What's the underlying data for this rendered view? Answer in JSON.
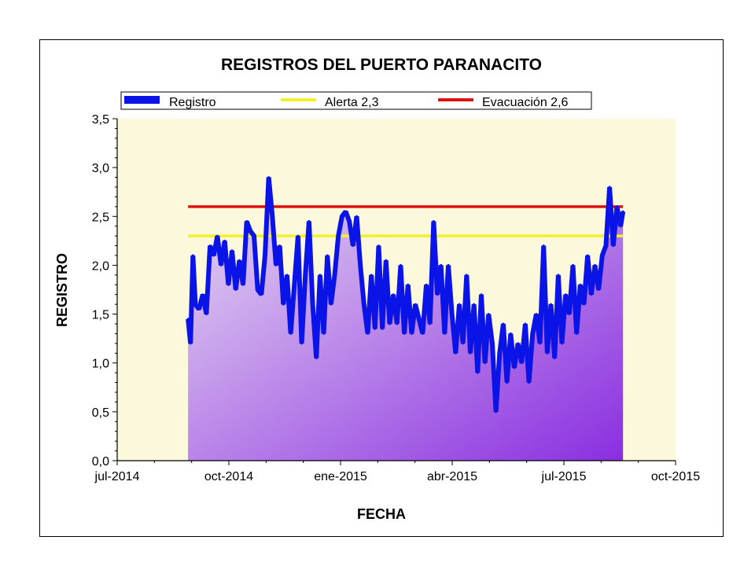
{
  "chart_data": {
    "type": "area",
    "title": "REGISTROS DEL PUERTO PARANACITO",
    "xlabel": "FECHA",
    "ylabel": "REGISTRO",
    "x_range": [
      "2014-07-01",
      "2015-10-01"
    ],
    "ylim": [
      0,
      3.5
    ],
    "x_ticks": [
      "jul-2014",
      "oct-2014",
      "ene-2015",
      "abr-2015",
      "jul-2015",
      "oct-2015"
    ],
    "y_ticks": [
      "0,0",
      "0,5",
      "1,0",
      "1,5",
      "2,0",
      "2,5",
      "3,0",
      "3,5"
    ],
    "legend_position": "top",
    "colors": {
      "plot_background": "#fbf8dc",
      "registro": "#0a14e6",
      "fill_top": "#e8dcf2",
      "fill_bottom": "#8a2ee0",
      "alerta": "#f2f22a",
      "evacuacion": "#e01010"
    },
    "series": [
      {
        "name": "Registro",
        "kind": "line-with-area-fill",
        "points": [
          [
            "2014-08-28",
            1.45
          ],
          [
            "2014-08-30",
            1.2
          ],
          [
            "2014-09-01",
            2.1
          ],
          [
            "2014-09-03",
            1.6
          ],
          [
            "2014-09-06",
            1.55
          ],
          [
            "2014-09-09",
            1.7
          ],
          [
            "2014-09-12",
            1.5
          ],
          [
            "2014-09-15",
            2.2
          ],
          [
            "2014-09-18",
            2.1
          ],
          [
            "2014-09-21",
            2.3
          ],
          [
            "2014-09-24",
            2.0
          ],
          [
            "2014-09-27",
            2.25
          ],
          [
            "2014-09-30",
            1.8
          ],
          [
            "2014-10-03",
            2.15
          ],
          [
            "2014-10-06",
            1.75
          ],
          [
            "2014-10-09",
            2.05
          ],
          [
            "2014-10-12",
            1.8
          ],
          [
            "2014-10-15",
            2.45
          ],
          [
            "2014-10-18",
            2.35
          ],
          [
            "2014-10-21",
            2.3
          ],
          [
            "2014-10-24",
            1.75
          ],
          [
            "2014-10-27",
            1.7
          ],
          [
            "2014-10-30",
            2.1
          ],
          [
            "2014-11-02",
            2.9
          ],
          [
            "2014-11-05",
            2.5
          ],
          [
            "2014-11-08",
            2.0
          ],
          [
            "2014-11-11",
            2.2
          ],
          [
            "2014-11-14",
            1.6
          ],
          [
            "2014-11-17",
            1.9
          ],
          [
            "2014-11-20",
            1.3
          ],
          [
            "2014-11-23",
            1.8
          ],
          [
            "2014-11-26",
            2.3
          ],
          [
            "2014-11-29",
            1.2
          ],
          [
            "2014-12-02",
            1.9
          ],
          [
            "2014-12-05",
            2.45
          ],
          [
            "2014-12-08",
            1.6
          ],
          [
            "2014-12-11",
            1.05
          ],
          [
            "2014-12-14",
            1.9
          ],
          [
            "2014-12-17",
            1.3
          ],
          [
            "2014-12-20",
            2.1
          ],
          [
            "2014-12-23",
            1.6
          ],
          [
            "2014-12-26",
            1.9
          ],
          [
            "2014-12-29",
            2.3
          ],
          [
            "2015-01-01",
            2.5
          ],
          [
            "2015-01-04",
            2.55
          ],
          [
            "2015-01-07",
            2.45
          ],
          [
            "2015-01-10",
            2.2
          ],
          [
            "2015-01-13",
            2.5
          ],
          [
            "2015-01-16",
            2.0
          ],
          [
            "2015-01-19",
            1.6
          ],
          [
            "2015-01-22",
            1.3
          ],
          [
            "2015-01-25",
            1.9
          ],
          [
            "2015-01-28",
            1.35
          ],
          [
            "2015-01-31",
            2.2
          ],
          [
            "2015-02-03",
            1.35
          ],
          [
            "2015-02-06",
            2.05
          ],
          [
            "2015-02-09",
            1.4
          ],
          [
            "2015-02-12",
            1.7
          ],
          [
            "2015-02-15",
            1.4
          ],
          [
            "2015-02-18",
            2.0
          ],
          [
            "2015-02-21",
            1.3
          ],
          [
            "2015-02-24",
            1.8
          ],
          [
            "2015-02-27",
            1.3
          ],
          [
            "2015-03-02",
            1.6
          ],
          [
            "2015-03-05",
            1.45
          ],
          [
            "2015-03-08",
            1.3
          ],
          [
            "2015-03-11",
            1.8
          ],
          [
            "2015-03-14",
            1.4
          ],
          [
            "2015-03-17",
            2.45
          ],
          [
            "2015-03-20",
            1.7
          ],
          [
            "2015-03-23",
            2.0
          ],
          [
            "2015-03-26",
            1.3
          ],
          [
            "2015-03-29",
            2.0
          ],
          [
            "2015-04-01",
            1.5
          ],
          [
            "2015-04-04",
            1.1
          ],
          [
            "2015-04-07",
            1.6
          ],
          [
            "2015-04-10",
            1.2
          ],
          [
            "2015-04-13",
            1.9
          ],
          [
            "2015-04-16",
            1.1
          ],
          [
            "2015-04-19",
            1.6
          ],
          [
            "2015-04-22",
            0.9
          ],
          [
            "2015-04-25",
            1.7
          ],
          [
            "2015-04-28",
            1.0
          ],
          [
            "2015-05-01",
            1.5
          ],
          [
            "2015-05-04",
            1.2
          ],
          [
            "2015-05-07",
            0.5
          ],
          [
            "2015-05-10",
            1.1
          ],
          [
            "2015-05-13",
            1.4
          ],
          [
            "2015-05-16",
            0.8
          ],
          [
            "2015-05-19",
            1.3
          ],
          [
            "2015-05-22",
            0.95
          ],
          [
            "2015-05-25",
            1.2
          ],
          [
            "2015-05-28",
            1.0
          ],
          [
            "2015-05-31",
            1.4
          ],
          [
            "2015-06-03",
            0.8
          ],
          [
            "2015-06-06",
            1.3
          ],
          [
            "2015-06-09",
            1.5
          ],
          [
            "2015-06-12",
            1.2
          ],
          [
            "2015-06-15",
            2.2
          ],
          [
            "2015-06-18",
            1.1
          ],
          [
            "2015-06-21",
            1.6
          ],
          [
            "2015-06-24",
            1.05
          ],
          [
            "2015-06-27",
            1.9
          ],
          [
            "2015-06-30",
            1.2
          ],
          [
            "2015-07-03",
            1.7
          ],
          [
            "2015-07-06",
            1.5
          ],
          [
            "2015-07-09",
            2.0
          ],
          [
            "2015-07-12",
            1.3
          ],
          [
            "2015-07-15",
            1.8
          ],
          [
            "2015-07-18",
            1.6
          ],
          [
            "2015-07-21",
            2.1
          ],
          [
            "2015-07-24",
            1.7
          ],
          [
            "2015-07-27",
            2.0
          ],
          [
            "2015-07-30",
            1.75
          ],
          [
            "2015-08-02",
            2.1
          ],
          [
            "2015-08-05",
            2.2
          ],
          [
            "2015-08-08",
            2.8
          ],
          [
            "2015-08-11",
            2.2
          ],
          [
            "2015-08-14",
            2.6
          ],
          [
            "2015-08-17",
            2.4
          ],
          [
            "2015-08-19",
            2.55
          ]
        ]
      },
      {
        "name": "Alerta 2,3",
        "kind": "reference-line",
        "value": 2.3,
        "x_start": "2014-08-28",
        "x_end": "2015-08-19"
      },
      {
        "name": "Evacuación 2,6",
        "kind": "reference-line",
        "value": 2.6,
        "x_start": "2014-08-28",
        "x_end": "2015-08-19"
      }
    ]
  }
}
